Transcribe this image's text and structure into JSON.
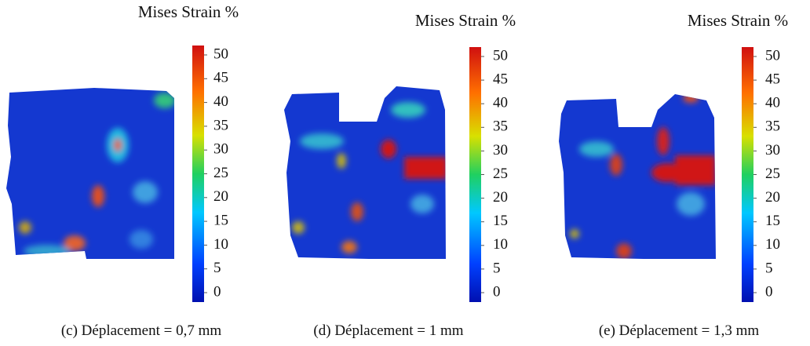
{
  "panels": [
    {
      "colorbar_title": "Mises Strain %",
      "colorbar_ticks": [
        50,
        45,
        40,
        35,
        30,
        25,
        20,
        15,
        10,
        5,
        0
      ],
      "caption": "(c)  Déplacement = 0,7 mm"
    },
    {
      "colorbar_title": "Mises Strain %",
      "colorbar_ticks": [
        50,
        45,
        40,
        35,
        30,
        25,
        20,
        15,
        10,
        5,
        0
      ],
      "caption": "(d)  Déplacement = 1 mm"
    },
    {
      "colorbar_title": "Mises Strain %",
      "colorbar_ticks": [
        50,
        45,
        40,
        35,
        30,
        25,
        20,
        15,
        10,
        5,
        0
      ],
      "caption": "(e)  Déplacement = 1,3 mm"
    }
  ]
}
